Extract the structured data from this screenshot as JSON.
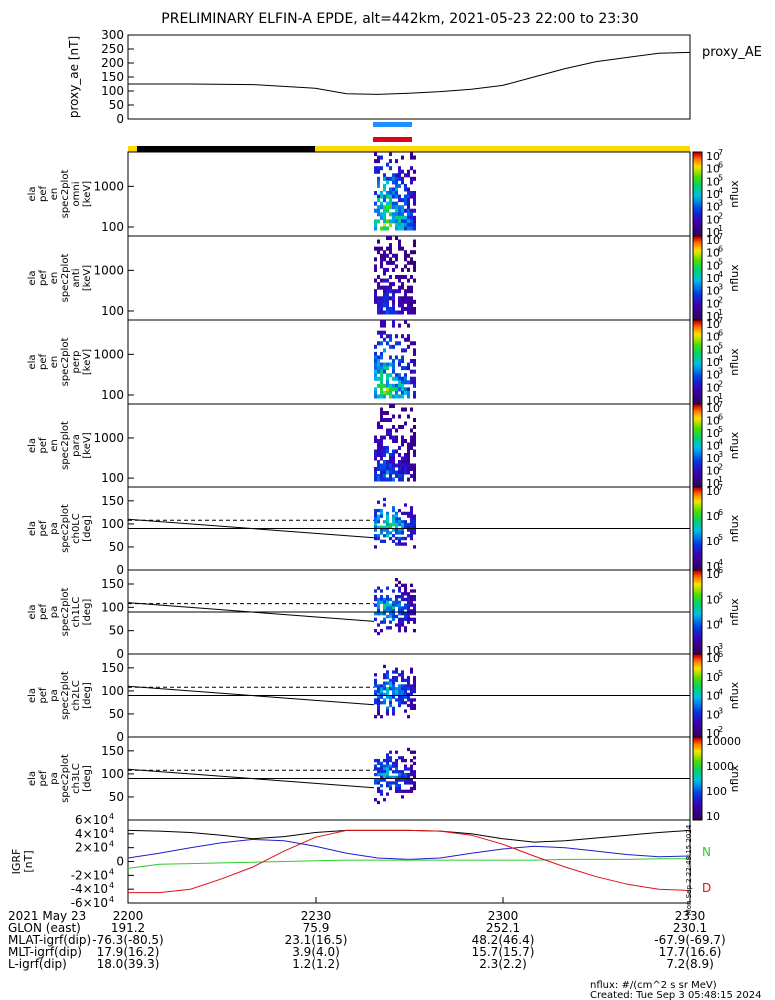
{
  "title": "PRELIMINARY ELFIN-A EPDE, alt=442km, 2021-05-23 22:00 to 23:30",
  "footer": {
    "units": "nflux: #/(cm^2 s sr MeV)",
    "created": "Created: Tue Sep  3 05:48:15 2024"
  },
  "side_stamp": "Mon Sep  2 22:48:15 2024",
  "colors": {
    "black_bar": "#000000",
    "yellow_bar": "#ffd700",
    "blue_marker": "#1e90ff",
    "red_marker": "#e0001a",
    "bx": "#000000",
    "by": "#1e1ecc",
    "bz": "#2ecc2e",
    "bd": "#dd1111"
  },
  "ephemeris": {
    "rows": [
      {
        "label": "2021 May 23",
        "values": [
          "2200",
          "2230",
          "2300",
          "2330"
        ]
      },
      {
        "label": "GLON (east)",
        "values": [
          "191.2",
          "75.9",
          "252.1",
          "230.1"
        ]
      },
      {
        "label": "MLAT-igrf(dip)",
        "values": [
          "-76.3(-80.5)",
          "23.1(16.5)",
          "48.2(46.4)",
          "-67.9(-69.7)"
        ]
      },
      {
        "label": "MLT-igrf(dip)",
        "values": [
          "17.9(16.2)",
          "3.9(4.0)",
          "15.7(15.7)",
          "17.7(16.6)"
        ]
      },
      {
        "label": "L-igrf(dip)",
        "values": [
          "18.0(39.3)",
          "1.2(1.2)",
          "2.3(2.2)",
          "7.2(8.9)"
        ]
      }
    ]
  },
  "chart_data": [
    {
      "type": "line",
      "ylabel": "proxy_ae [nT]",
      "legend": "proxy_AE",
      "ylim": [
        0,
        300
      ],
      "yticks": [
        "0",
        "50",
        "100",
        "150",
        "200",
        "250",
        "300"
      ],
      "x_minutes": [
        0,
        10,
        20,
        30,
        35,
        40,
        45,
        50,
        55,
        60,
        65,
        70,
        75,
        80,
        85,
        90
      ],
      "values": [
        125,
        125,
        123,
        110,
        90,
        88,
        92,
        98,
        106,
        120,
        150,
        180,
        205,
        220,
        235,
        238
      ]
    },
    {
      "type": "heatmap",
      "ylabel_lines": [
        "ela",
        "pef",
        "en",
        "spec2plot",
        "omni",
        "[keV]"
      ],
      "yscale": "log",
      "yticks": [
        "100",
        "1000"
      ],
      "colorbar_label": "nflux",
      "cb_ticks": [
        "10",
        "10",
        "10",
        "10",
        "10",
        "10",
        "10"
      ],
      "cb_exps": [
        "1",
        "2",
        "3",
        "4",
        "5",
        "6",
        "7"
      ],
      "intensity_peak": 0.85
    },
    {
      "type": "heatmap",
      "ylabel_lines": [
        "ela",
        "pef",
        "en",
        "spec2plot",
        "anti",
        "[keV]"
      ],
      "yscale": "log",
      "yticks": [
        "100",
        "1000"
      ],
      "colorbar_label": "nflux",
      "cb_ticks": [
        "10",
        "10",
        "10",
        "10",
        "10",
        "10",
        "10"
      ],
      "cb_exps": [
        "1",
        "2",
        "3",
        "4",
        "5",
        "6",
        "7"
      ],
      "intensity_peak": 0.35
    },
    {
      "type": "heatmap",
      "ylabel_lines": [
        "ela",
        "pef",
        "en",
        "spec2plot",
        "perp",
        "[keV]"
      ],
      "yscale": "log",
      "yticks": [
        "100",
        "1000"
      ],
      "colorbar_label": "nflux",
      "cb_ticks": [
        "10",
        "10",
        "10",
        "10",
        "10",
        "10",
        "10"
      ],
      "cb_exps": [
        "1",
        "2",
        "3",
        "4",
        "5",
        "6",
        "7"
      ],
      "intensity_peak": 0.8
    },
    {
      "type": "heatmap",
      "ylabel_lines": [
        "ela",
        "pef",
        "en",
        "spec2plot",
        "para",
        "[keV]"
      ],
      "yscale": "log",
      "yticks": [
        "100",
        "1000"
      ],
      "colorbar_label": "nflux",
      "cb_ticks": [
        "10",
        "10",
        "10",
        "10",
        "10",
        "10",
        "10"
      ],
      "cb_exps": [
        "1",
        "2",
        "3",
        "4",
        "5",
        "6",
        "7"
      ],
      "intensity_peak": 0.45
    },
    {
      "type": "heatmap",
      "ylabel_lines": [
        "ela",
        "pef",
        "pa",
        "spec2plot",
        "ch0LC",
        "[deg]"
      ],
      "ylim": [
        0,
        180
      ],
      "yticks": [
        "0",
        "50",
        "100",
        "150"
      ],
      "colorbar_label": "nflux",
      "cb_ticks": [
        "10",
        "10",
        "10",
        "10"
      ],
      "cb_exps": [
        "4",
        "5",
        "6",
        "7"
      ],
      "intensity_peak": 0.7
    },
    {
      "type": "heatmap",
      "ylabel_lines": [
        "ela",
        "pef",
        "pa",
        "spec2plot",
        "ch1LC",
        "[deg]"
      ],
      "ylim": [
        0,
        180
      ],
      "yticks": [
        "0",
        "50",
        "100",
        "150"
      ],
      "colorbar_label": "nflux",
      "cb_ticks": [
        "10",
        "10",
        "10",
        "10"
      ],
      "cb_exps": [
        "3",
        "4",
        "5",
        "6"
      ],
      "intensity_peak": 0.6
    },
    {
      "type": "heatmap",
      "ylabel_lines": [
        "ela",
        "pef",
        "pa",
        "spec2plot",
        "ch2LC",
        "[deg]"
      ],
      "ylim": [
        0,
        180
      ],
      "yticks": [
        "0",
        "50",
        "100",
        "150"
      ],
      "colorbar_label": "nflux",
      "cb_ticks": [
        "10",
        "10",
        "10",
        "10",
        "10"
      ],
      "cb_exps": [
        "2",
        "3",
        "4",
        "5",
        "6"
      ],
      "intensity_peak": 0.6
    },
    {
      "type": "heatmap",
      "ylabel_lines": [
        "ela",
        "pef",
        "pa",
        "spec2plot",
        "ch3LC",
        "[deg]"
      ],
      "ylim": [
        0,
        180
      ],
      "yticks": [
        "50",
        "100",
        "150"
      ],
      "colorbar_label": "nflux",
      "cb_ticks": [
        "10",
        "100",
        "1000",
        "10000"
      ],
      "cb_exps": [
        "",
        "",
        "",
        ""
      ],
      "intensity_peak": 0.55
    },
    {
      "type": "line",
      "ylabel_lines": [
        "IGRF",
        "[nT]"
      ],
      "ylim": [
        -60000,
        60000
      ],
      "ytick_values": [
        -60000,
        -40000,
        -20000,
        0,
        20000,
        40000,
        60000
      ],
      "ytick_mant": [
        "-6",
        "-4",
        "-2",
        "0",
        "2",
        "4",
        "6"
      ],
      "legend": [
        "N",
        "D"
      ],
      "x_minutes": [
        0,
        5,
        10,
        15,
        20,
        25,
        30,
        35,
        40,
        45,
        50,
        55,
        60,
        65,
        70,
        75,
        80,
        85,
        90
      ],
      "series": [
        {
          "values": [
            45000,
            44000,
            42000,
            38000,
            33000,
            36000,
            42000,
            45000,
            45000,
            45000,
            44000,
            40000,
            33000,
            28000,
            30000,
            34000,
            38000,
            42000,
            45000
          ]
        },
        {
          "name": "N",
          "values": [
            5000,
            12000,
            20000,
            27000,
            32000,
            30000,
            22000,
            12000,
            5000,
            3000,
            5000,
            12000,
            18000,
            22000,
            20000,
            15000,
            10000,
            7000,
            8000
          ]
        },
        {
          "values": [
            -10000,
            -4000,
            -3000,
            -2000,
            -1000,
            0,
            1000,
            2000,
            2000,
            2000,
            2000,
            2000,
            2000,
            2000,
            3000,
            3000,
            3000,
            4000,
            4000
          ]
        },
        {
          "name": "D",
          "values": [
            -45000,
            -45000,
            -40000,
            -25000,
            -8000,
            15000,
            35000,
            45000,
            45000,
            45000,
            44000,
            38000,
            25000,
            8000,
            -8000,
            -22000,
            -33000,
            -40000,
            -42000
          ]
        }
      ]
    }
  ]
}
